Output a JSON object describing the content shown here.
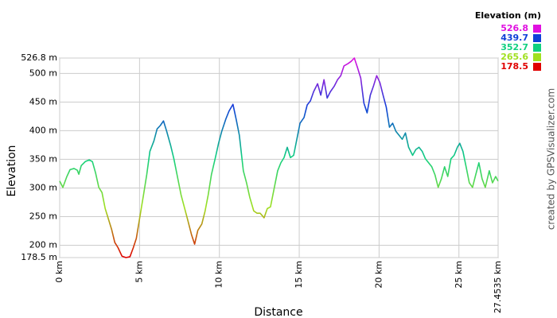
{
  "chart_data": {
    "type": "line",
    "xlabel": "Distance",
    "ylabel": "Elevation",
    "credit": "created by GPSVisualizer.com",
    "xlim": [
      0,
      27.4535
    ],
    "ylim": [
      178.5,
      526.8
    ],
    "grid": true,
    "xticks": [
      {
        "value": 0,
        "label": "0 km"
      },
      {
        "value": 5,
        "label": "5 km"
      },
      {
        "value": 10,
        "label": "10 km"
      },
      {
        "value": 15,
        "label": "15 km"
      },
      {
        "value": 20,
        "label": "20 km"
      },
      {
        "value": 25,
        "label": "25 km"
      },
      {
        "value": 27.4535,
        "label": "27.4535 km"
      }
    ],
    "yticks": [
      {
        "value": 178.5,
        "label": "178.5 m"
      },
      {
        "value": 200,
        "label": "200 m"
      },
      {
        "value": 250,
        "label": "250 m"
      },
      {
        "value": 300,
        "label": "300 m"
      },
      {
        "value": 350,
        "label": "350 m"
      },
      {
        "value": 400,
        "label": "400 m"
      },
      {
        "value": 450,
        "label": "450 m"
      },
      {
        "value": 500,
        "label": "500 m"
      },
      {
        "value": 526.8,
        "label": "526.8 m"
      }
    ],
    "legend": {
      "title": "Elevation (m)",
      "items": [
        {
          "value": 526.8,
          "color": "#e010e0"
        },
        {
          "value": 439.7,
          "color": "#1040d8"
        },
        {
          "value": 352.7,
          "color": "#10d080"
        },
        {
          "value": 265.6,
          "color": "#a0e020"
        },
        {
          "value": 178.5,
          "color": "#e00000"
        }
      ]
    },
    "x": [
      0,
      0.2,
      0.45,
      0.65,
      0.9,
      1.1,
      1.2,
      1.35,
      1.6,
      1.85,
      2.05,
      2.25,
      2.45,
      2.65,
      2.85,
      3.05,
      3.25,
      3.45,
      3.65,
      3.9,
      4.15,
      4.4,
      4.6,
      4.8,
      5.0,
      5.25,
      5.45,
      5.65,
      5.9,
      6.1,
      6.3,
      6.5,
      6.7,
      6.95,
      7.15,
      7.35,
      7.6,
      7.8,
      8.0,
      8.25,
      8.45,
      8.65,
      8.9,
      9.1,
      9.3,
      9.5,
      9.75,
      9.95,
      10.15,
      10.4,
      10.6,
      10.85,
      11.05,
      11.25,
      11.5,
      11.7,
      11.9,
      12.15,
      12.35,
      12.55,
      12.8,
      13.0,
      13.2,
      13.4,
      13.65,
      13.85,
      14.05,
      14.25,
      14.45,
      14.65,
      14.85,
      15.05,
      15.3,
      15.5,
      15.7,
      15.9,
      16.15,
      16.35,
      16.55,
      16.75,
      16.95,
      17.2,
      17.4,
      17.6,
      17.8,
      18.05,
      18.25,
      18.45,
      18.65,
      18.85,
      19.05,
      19.25,
      19.45,
      19.65,
      19.85,
      20.05,
      20.25,
      20.45,
      20.65,
      20.85,
      21.05,
      21.25,
      21.45,
      21.65,
      21.85,
      22.1,
      22.3,
      22.5,
      22.7,
      22.9,
      23.1,
      23.3,
      23.5,
      23.7,
      23.9,
      24.1,
      24.3,
      24.5,
      24.7,
      24.9,
      25.05,
      25.25,
      25.45,
      25.65,
      25.85,
      26.05,
      26.25,
      26.45,
      26.65,
      26.9,
      27.1,
      27.3,
      27.45
    ],
    "values": [
      312,
      301,
      320,
      332,
      334,
      331,
      324,
      339,
      346,
      349,
      346,
      326,
      301,
      292,
      264,
      246,
      228,
      205,
      196,
      181,
      178.5,
      180,
      195,
      212,
      246,
      288,
      323,
      364,
      382,
      403,
      409,
      417,
      399,
      374,
      351,
      323,
      288,
      267,
      246,
      219,
      202,
      226,
      237,
      259,
      288,
      323,
      353,
      378,
      399,
      420,
      434,
      446,
      420,
      392,
      330,
      309,
      284,
      260,
      256,
      256,
      248,
      264,
      267,
      295,
      330,
      344,
      353,
      371,
      353,
      357,
      385,
      413,
      423,
      445,
      452,
      468,
      482,
      462,
      489,
      457,
      468,
      478,
      489,
      496,
      513,
      517,
      521,
      526.8,
      510,
      492,
      448,
      431,
      462,
      478,
      496,
      484,
      462,
      441,
      406,
      413,
      399,
      392,
      385,
      396,
      371,
      357,
      367,
      371,
      364,
      351,
      344,
      337,
      323,
      301,
      316,
      337,
      320,
      351,
      357,
      371,
      378,
      364,
      337,
      309,
      301,
      323,
      344,
      316,
      301,
      330,
      309,
      320,
      312
    ]
  }
}
